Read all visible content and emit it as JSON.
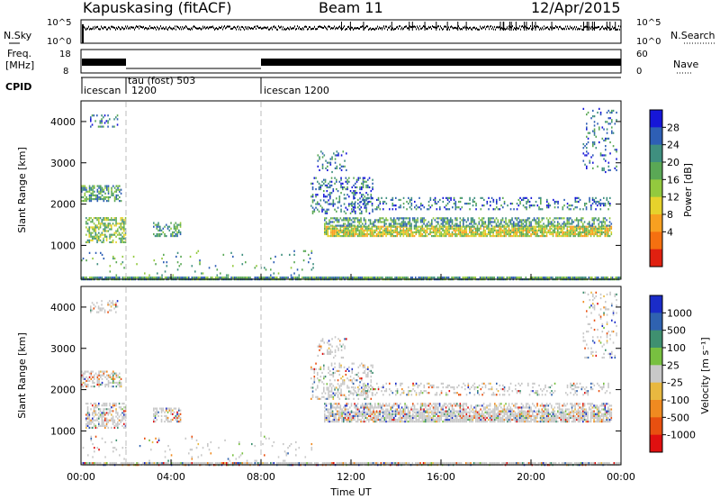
{
  "header": {
    "station": "Kapuskasing (fitACF)",
    "beam": "Beam 11",
    "date": "12/Apr/2015"
  },
  "strips": {
    "nsky_label": "N.Sky",
    "nsky_ticks": [
      "10^5",
      "10^0"
    ],
    "nsearch_label": "N.Search",
    "nsearch_ticks": [
      "10^5",
      "10^0"
    ],
    "freq_label_1": "Freq.",
    "freq_label_2": "[MHz]",
    "freq_ticks": [
      "18",
      "8"
    ],
    "nave_label": "Nave",
    "nave_ticks": [
      "60",
      "0"
    ],
    "cpid_label": "CPID",
    "cpid_segments": [
      {
        "label": "icescan",
        "start_hour": 0
      },
      {
        "label": "1200",
        "start_hour": 0
      },
      {
        "label": "tau (fost) 503",
        "start_hour": 2
      },
      {
        "label": "icescan 1200",
        "start_hour": 8
      }
    ]
  },
  "chart_data": [
    {
      "type": "heatmap",
      "name": "power-panel",
      "ylabel": "Slant Range [km]",
      "yticks": [
        "4000",
        "3000",
        "2000",
        "1000"
      ],
      "ylim": [
        180,
        4500
      ],
      "colorbar_label": "Power [dB]",
      "colorbar_ticks": [
        "28",
        "24",
        "20",
        "16",
        "12",
        "8",
        "4"
      ],
      "colorbar_range": [
        0,
        32
      ],
      "colors": [
        "#1616d8",
        "#2e5fb5",
        "#3f8f7f",
        "#5aa855",
        "#93c93e",
        "#e6d22c",
        "#f7a020",
        "#f57010",
        "#e02010"
      ]
    },
    {
      "type": "heatmap",
      "name": "velocity-panel",
      "ylabel": "Slant Range [km]",
      "yticks": [
        "4000",
        "3000",
        "2000",
        "1000"
      ],
      "ylim": [
        180,
        4500
      ],
      "colorbar_label": "Velocity [m s⁻¹]",
      "colorbar_ticks": [
        "1000",
        "500",
        "100",
        "25",
        "-25",
        "-100",
        "-500",
        "-1000"
      ],
      "colors": [
        "#1a2cc8",
        "#2f62b0",
        "#3f9070",
        "#78c040",
        "#c8c8c8",
        "#e8b840",
        "#f08a20",
        "#e85010",
        "#e01010"
      ]
    }
  ],
  "xaxis": {
    "label": "Time UT",
    "ticks": [
      "00:00",
      "04:00",
      "08:00",
      "12:00",
      "16:00",
      "20:00",
      "00:00"
    ],
    "range_hours": [
      0,
      24
    ]
  },
  "colors": {
    "accent": "#000000",
    "ground_scatter": "#c8c8c8",
    "dashed_marker": "#bbbbbb"
  }
}
